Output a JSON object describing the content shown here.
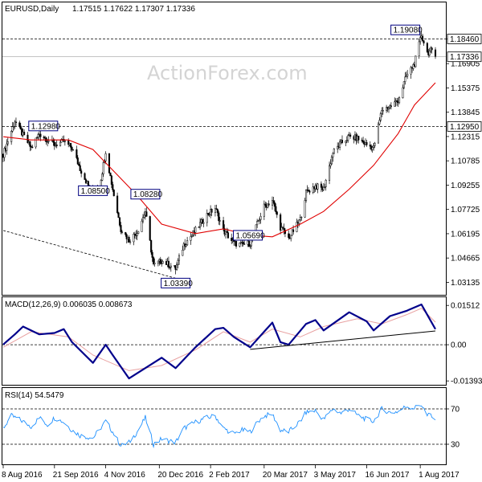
{
  "header": {
    "symbol": "EURUSD,Daily",
    "ohlc": "1.17515 1.17622 1.17307 1.17336"
  },
  "watermark": "ActionForex.com",
  "colors": {
    "candle": "#000000",
    "ma": "#e00000",
    "macd": "#00008b",
    "signal": "#e8a0a0",
    "rsi": "#1e90ff",
    "dashed": "#000000",
    "grid": "#000000",
    "current_bg": "#ffffff"
  },
  "chart_data": [
    {
      "type": "line",
      "name": "price",
      "ylim": [
        1.026,
        1.199
      ],
      "yticks": [
        "1.18460",
        "1.16905",
        "1.15375",
        "1.13845",
        "1.12315",
        "1.10785",
        "1.09255",
        "1.07725",
        "1.06195",
        "1.04665",
        "1.03135"
      ],
      "ytick_values": [
        1.1846,
        1.16905,
        1.15375,
        1.13845,
        1.12315,
        1.10785,
        1.09255,
        1.07725,
        1.06195,
        1.04665,
        1.03135
      ],
      "horizontal_levels": [
        {
          "value": 1.1846,
          "label": "1.18460"
        },
        {
          "value": 1.1295,
          "label": "1.12950"
        }
      ],
      "current_price": {
        "value": 1.17336,
        "label": "1.17336"
      },
      "annotations": [
        {
          "label": "1.12980",
          "date": "2016-09-21",
          "value": 1.1298
        },
        {
          "label": "1.08500",
          "date": "2016-10-24",
          "value": 1.085
        },
        {
          "label": "1.08280",
          "date": "2016-12-08",
          "value": 1.0828
        },
        {
          "label": "1.03390",
          "date": "2017-01-03",
          "value": 1.0339
        },
        {
          "label": "1.05690",
          "date": "2017-03-06",
          "value": 1.0569
        },
        {
          "label": "1.19080",
          "date": "2017-08-02",
          "value": 1.1908
        }
      ],
      "trendline": {
        "from": {
          "date": "2016-08-08",
          "value": 1.064
        },
        "to": {
          "date": "2017-01-03",
          "value": 1.0339
        }
      },
      "close_path": [
        [
          "2016-08-08",
          1.112
        ],
        [
          "2016-08-18",
          1.133
        ],
        [
          "2016-08-25",
          1.124
        ],
        [
          "2016-09-01",
          1.116
        ],
        [
          "2016-09-08",
          1.125
        ],
        [
          "2016-09-21",
          1.118
        ],
        [
          "2016-09-29",
          1.12
        ],
        [
          "2016-10-06",
          1.116
        ],
        [
          "2016-10-13",
          1.103
        ],
        [
          "2016-10-24",
          1.086
        ],
        [
          "2016-10-31",
          1.097
        ],
        [
          "2016-11-04",
          1.114
        ],
        [
          "2016-11-10",
          1.09
        ],
        [
          "2016-11-17",
          1.065
        ],
        [
          "2016-11-24",
          1.058
        ],
        [
          "2016-12-01",
          1.063
        ],
        [
          "2016-12-08",
          1.076
        ],
        [
          "2016-12-15",
          1.042
        ],
        [
          "2016-12-22",
          1.045
        ],
        [
          "2017-01-03",
          1.04
        ],
        [
          "2017-01-10",
          1.055
        ],
        [
          "2017-01-20",
          1.064
        ],
        [
          "2017-01-30",
          1.074
        ],
        [
          "2017-02-06",
          1.078
        ],
        [
          "2017-02-13",
          1.064
        ],
        [
          "2017-02-22",
          1.056
        ],
        [
          "2017-03-01",
          1.055
        ],
        [
          "2017-03-08",
          1.056
        ],
        [
          "2017-03-15",
          1.07
        ],
        [
          "2017-03-20",
          1.079
        ],
        [
          "2017-03-27",
          1.083
        ],
        [
          "2017-04-03",
          1.066
        ],
        [
          "2017-04-10",
          1.059
        ],
        [
          "2017-04-20",
          1.071
        ],
        [
          "2017-04-25",
          1.088
        ],
        [
          "2017-05-03",
          1.092
        ],
        [
          "2017-05-10",
          1.09
        ],
        [
          "2017-05-18",
          1.113
        ],
        [
          "2017-05-25",
          1.119
        ],
        [
          "2017-06-01",
          1.123
        ],
        [
          "2017-06-08",
          1.122
        ],
        [
          "2017-06-16",
          1.118
        ],
        [
          "2017-06-22",
          1.116
        ],
        [
          "2017-06-29",
          1.14
        ],
        [
          "2017-07-06",
          1.142
        ],
        [
          "2017-07-13",
          1.146
        ],
        [
          "2017-07-20",
          1.161
        ],
        [
          "2017-07-27",
          1.169
        ],
        [
          "2017-08-02",
          1.187
        ],
        [
          "2017-08-07",
          1.176
        ],
        [
          "2017-08-10",
          1.177
        ],
        [
          "2017-08-14",
          1.1734
        ]
      ],
      "ma_path": [
        [
          "2016-08-08",
          1.123
        ],
        [
          "2016-09-01",
          1.121
        ],
        [
          "2016-10-03",
          1.121
        ],
        [
          "2016-10-24",
          1.115
        ],
        [
          "2016-11-10",
          1.102
        ],
        [
          "2016-12-01",
          1.086
        ],
        [
          "2016-12-22",
          1.068
        ],
        [
          "2017-01-20",
          1.062
        ],
        [
          "2017-02-13",
          1.065
        ],
        [
          "2017-03-08",
          1.061
        ],
        [
          "2017-03-27",
          1.06
        ],
        [
          "2017-04-20",
          1.068
        ],
        [
          "2017-05-10",
          1.076
        ],
        [
          "2017-06-01",
          1.09
        ],
        [
          "2017-06-22",
          1.105
        ],
        [
          "2017-07-13",
          1.125
        ],
        [
          "2017-07-27",
          1.143
        ],
        [
          "2017-08-14",
          1.157
        ]
      ]
    },
    {
      "type": "line",
      "name": "MACD(12,26,9) 0.006035 0.008673",
      "title": "MACD(12,26,9) 0.006035 0.008673",
      "ylim": [
        -0.0145,
        0.0158
      ],
      "yticks": [
        "0.01512",
        "0.00",
        "-0.013938"
      ],
      "ytick_values": [
        0.01512,
        0.0,
        -0.013938
      ],
      "macd_path": [
        [
          "2016-08-08",
          0.0001
        ],
        [
          "2016-08-18",
          0.004
        ],
        [
          "2016-08-25",
          0.007
        ],
        [
          "2016-09-08",
          0.004
        ],
        [
          "2016-09-21",
          0.0045
        ],
        [
          "2016-09-29",
          0.006
        ],
        [
          "2016-10-06",
          0.001
        ],
        [
          "2016-10-24",
          -0.007
        ],
        [
          "2016-11-04",
          0.0
        ],
        [
          "2016-11-10",
          -0.004
        ],
        [
          "2016-11-24",
          -0.013
        ],
        [
          "2016-12-08",
          -0.009
        ],
        [
          "2016-12-22",
          -0.005
        ],
        [
          "2017-01-03",
          -0.009
        ],
        [
          "2017-01-20",
          -0.001
        ],
        [
          "2017-02-06",
          0.006
        ],
        [
          "2017-02-13",
          0.0065
        ],
        [
          "2017-02-22",
          0.003
        ],
        [
          "2017-03-08",
          -0.001
        ],
        [
          "2017-03-20",
          0.005
        ],
        [
          "2017-03-27",
          0.0085
        ],
        [
          "2017-04-03",
          0.001
        ],
        [
          "2017-04-10",
          0.0
        ],
        [
          "2017-04-25",
          0.008
        ],
        [
          "2017-05-03",
          0.0095
        ],
        [
          "2017-05-10",
          0.0055
        ],
        [
          "2017-06-01",
          0.0125
        ],
        [
          "2017-06-16",
          0.009
        ],
        [
          "2017-06-22",
          0.0055
        ],
        [
          "2017-07-06",
          0.011
        ],
        [
          "2017-07-20",
          0.013
        ],
        [
          "2017-08-02",
          0.0155
        ],
        [
          "2017-08-14",
          0.006
        ]
      ],
      "signal_path": [
        [
          "2016-08-08",
          -0.001
        ],
        [
          "2016-09-01",
          0.005
        ],
        [
          "2016-10-03",
          0.003
        ],
        [
          "2016-10-24",
          -0.004
        ],
        [
          "2016-11-24",
          -0.01
        ],
        [
          "2016-12-22",
          -0.008
        ],
        [
          "2017-01-20",
          -0.002
        ],
        [
          "2017-02-13",
          0.005
        ],
        [
          "2017-03-08",
          0.001
        ],
        [
          "2017-03-27",
          0.006
        ],
        [
          "2017-04-20",
          0.003
        ],
        [
          "2017-05-10",
          0.007
        ],
        [
          "2017-06-08",
          0.01
        ],
        [
          "2017-06-29",
          0.008
        ],
        [
          "2017-07-20",
          0.0115
        ],
        [
          "2017-08-02",
          0.014
        ],
        [
          "2017-08-14",
          0.0087
        ]
      ],
      "trendline": {
        "from": {
          "date": "2017-03-08",
          "value": -0.0018
        },
        "to": {
          "date": "2017-08-14",
          "value": 0.0053
        }
      }
    },
    {
      "type": "line",
      "name": "RSI(14) 54.5479",
      "title": "RSI(14) 54.5479",
      "ylim": [
        10,
        90
      ],
      "yticks": [
        "70",
        "30"
      ],
      "ytick_values": [
        70,
        30
      ],
      "rsi_path": [
        [
          "2016-08-08",
          48
        ],
        [
          "2016-08-15",
          62
        ],
        [
          "2016-08-22",
          58
        ],
        [
          "2016-09-01",
          50
        ],
        [
          "2016-09-08",
          60
        ],
        [
          "2016-09-15",
          52
        ],
        [
          "2016-09-21",
          60
        ],
        [
          "2016-09-29",
          55
        ],
        [
          "2016-10-06",
          46
        ],
        [
          "2016-10-13",
          40
        ],
        [
          "2016-10-24",
          37
        ],
        [
          "2016-11-04",
          56
        ],
        [
          "2016-11-10",
          44
        ],
        [
          "2016-11-17",
          28
        ],
        [
          "2016-11-24",
          32
        ],
        [
          "2016-12-01",
          44
        ],
        [
          "2016-12-08",
          60
        ],
        [
          "2016-12-15",
          30
        ],
        [
          "2016-12-22",
          36
        ],
        [
          "2017-01-03",
          32
        ],
        [
          "2017-01-10",
          48
        ],
        [
          "2017-01-20",
          55
        ],
        [
          "2017-01-30",
          60
        ],
        [
          "2017-02-06",
          62
        ],
        [
          "2017-02-13",
          48
        ],
        [
          "2017-02-22",
          42
        ],
        [
          "2017-03-01",
          46
        ],
        [
          "2017-03-08",
          44
        ],
        [
          "2017-03-15",
          56
        ],
        [
          "2017-03-20",
          62
        ],
        [
          "2017-03-27",
          64
        ],
        [
          "2017-04-03",
          46
        ],
        [
          "2017-04-10",
          44
        ],
        [
          "2017-04-20",
          56
        ],
        [
          "2017-04-25",
          66
        ],
        [
          "2017-05-03",
          68
        ],
        [
          "2017-05-10",
          58
        ],
        [
          "2017-05-18",
          70
        ],
        [
          "2017-05-25",
          65
        ],
        [
          "2017-06-01",
          70
        ],
        [
          "2017-06-08",
          63
        ],
        [
          "2017-06-16",
          58
        ],
        [
          "2017-06-22",
          56
        ],
        [
          "2017-06-29",
          70
        ],
        [
          "2017-07-06",
          66
        ],
        [
          "2017-07-13",
          67
        ],
        [
          "2017-07-20",
          73
        ],
        [
          "2017-07-27",
          71
        ],
        [
          "2017-08-02",
          75
        ],
        [
          "2017-08-07",
          62
        ],
        [
          "2017-08-10",
          64
        ],
        [
          "2017-08-14",
          54.5
        ]
      ]
    }
  ],
  "x_axis": {
    "ticks": [
      {
        "label": "8 Aug 2016",
        "date": "2016-08-08"
      },
      {
        "label": "21 Sep 2016",
        "date": "2016-09-21"
      },
      {
        "label": "4 Nov 2016",
        "date": "2016-11-04"
      },
      {
        "label": "20 Dec 2016",
        "date": "2016-12-20"
      },
      {
        "label": "2 Feb 2017",
        "date": "2017-02-02"
      },
      {
        "label": "20 Mar 2017",
        "date": "2017-03-20"
      },
      {
        "label": "3 May 2017",
        "date": "2017-05-03"
      },
      {
        "label": "16 Jun 2017",
        "date": "2017-06-16"
      },
      {
        "label": "1 Aug 2017",
        "date": "2017-08-01"
      }
    ]
  }
}
